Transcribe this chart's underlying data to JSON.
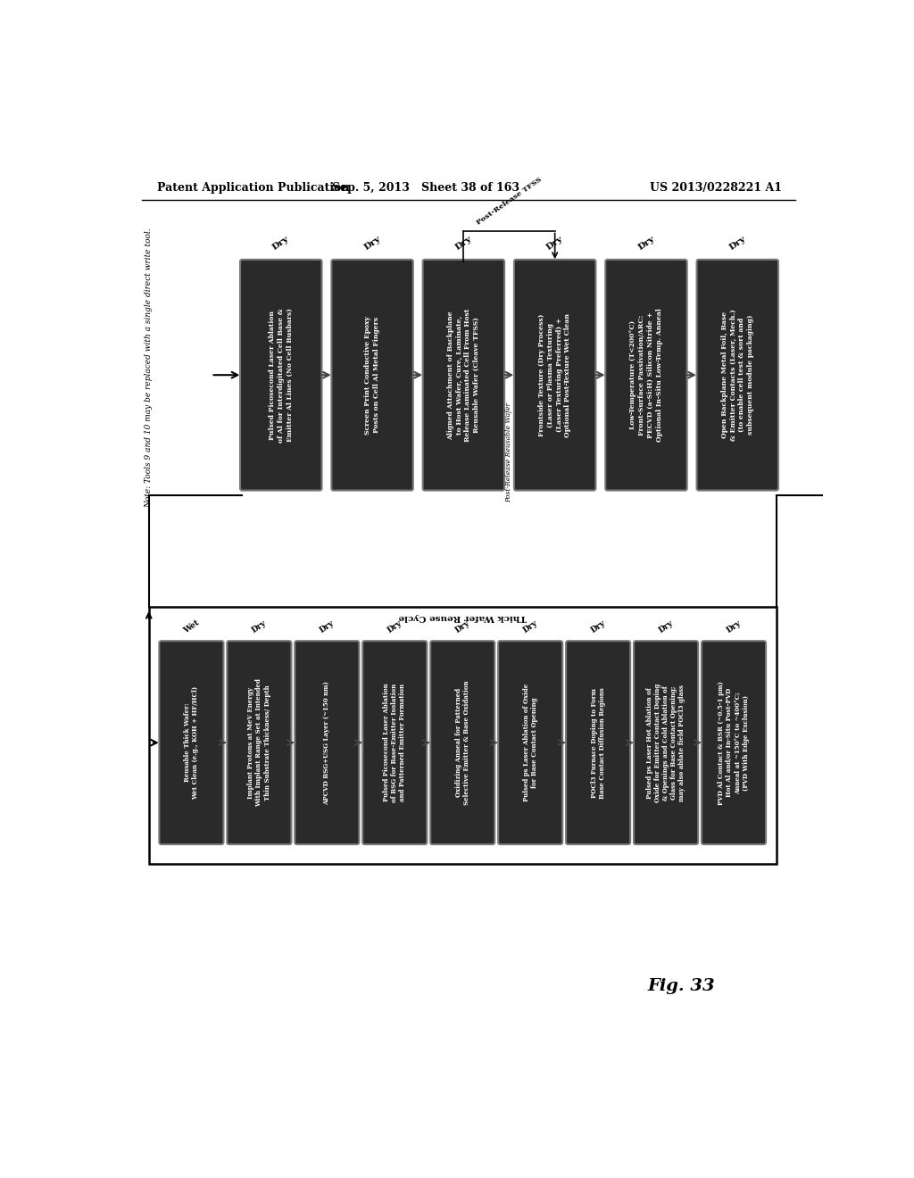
{
  "header_left": "Patent Application Publication",
  "header_mid": "Sep. 5, 2013   Sheet 38 of 163",
  "header_right": "US 2013/0228221 A1",
  "fig_label": "Fig. 33",
  "note_text": "Note: Tools 9 and 10 may be replaced with a single direct write tool.",
  "post_release_tfss_label": "Post-Release TFSS",
  "post_release_reusable_label": "Post-Release Reusable Wafer",
  "bottom_banner": "Thick Wafer Reuse Cycle",
  "top_boxes": [
    {
      "label": "Dry",
      "text": "Pulsed Picosecond Laser Ablation\nof Al for Interdigitated Cell Base &\nEmitter Al Lines (No Cell Busbars)"
    },
    {
      "label": "Dry",
      "text": "Screen Print Conductive Epoxy\nPosts on Cell Al Metal Fingers"
    },
    {
      "label": "Dry",
      "text": "Aligned Attachment of Backplane\nto Host Wafer, Cure, Laminate,\nRelease Laminated Cell From Host\nReusable Wafer (Cleave TFSS)"
    },
    {
      "label": "Dry",
      "text": "Frontside Texture (Dry Process)\n(Laser or Plasma Texturing\n(Laser Texturing Preferred) +\nOptional Post-Texture Wet Clean"
    },
    {
      "label": "Dry",
      "text": "Low-Temperature (T<200°C)\nFront-Surface Passivation/ARC:\nPECVD (a-Si:H) Silicon Nitride +\nOptional In-Situ Low-Temp. Anneal"
    },
    {
      "label": "Dry",
      "text": "Open Backplane Metal Foil, Base\n& Emitter Contacts (Laser, Mech.)\n(to enable cell test & sort and\nsubsequent module packaging)"
    }
  ],
  "bottom_boxes": [
    {
      "label": "Wet",
      "text": "Reusable Thick Wafer:\nWet Clean (e.g., KOH + HF/HCl)"
    },
    {
      "label": "Dry",
      "text": "Implant Protons at MeV Energy\nWith Implant Range Set at Intended\nThin Substrate Thickness/ Depth"
    },
    {
      "label": "Dry",
      "text": "APCVD BSG+USG Layer (~150 nm)"
    },
    {
      "label": "Dry",
      "text": "Pulsed Picosecond Laser Ablation\nof BSG for Base-Emitter Isolation\nand Patterned Emitter Formation"
    },
    {
      "label": "Dry",
      "text": "Oxidizing Anneal for Patterned\nSelective Emitter & Base Oxidation"
    },
    {
      "label": "Dry",
      "text": "Pulsed ps Laser Ablation of Oxide\nfor Base Contact Opening"
    },
    {
      "label": "Dry",
      "text": "POCl3 Furnace Doping to Form\nBase Contact Diffusion Regions"
    },
    {
      "label": "Dry",
      "text": "Pulsed ps Laser Hot Ablation of\nOxide for Emitter Contact Doping\n& Openings and Cold Ablation of\nGlass for Base Contact Opening;\nmay also ablate field POCl3 glass"
    },
    {
      "label": "Dry",
      "text": "PVD Al Contact & BSR (~0.5-1 μm)\nHot Al and/or In-Situ Post-PVD\nAnneal at ~150°C to ~400°C;\n(PVD With Edge Exclusion)"
    }
  ],
  "box_bg_color": "#2a2a2a",
  "box_text_color": "#ffffff",
  "box_border_color": "#777777",
  "arrow_color": "#444444",
  "background_color": "#ffffff"
}
